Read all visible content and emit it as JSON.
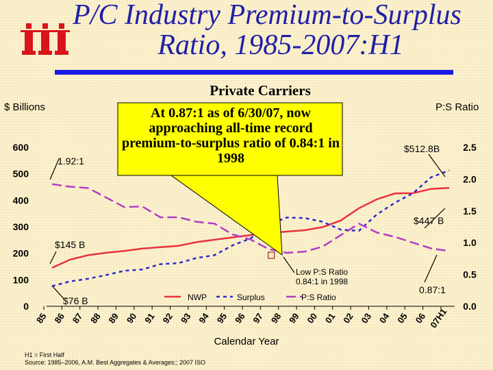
{
  "title_line1": "P/C Industry Premium-to-Surplus",
  "title_line2": "Ratio, 1985-2007:H1",
  "subtitle": "Private Carriers",
  "left_axis_label": "$ Billions",
  "right_axis_label": "P:S Ratio",
  "callout": "At 0.87:1 as of 6/30/07, now approaching all-time record premium-to-surplus ratio of 0.84:1 in 1998",
  "footnote_line1": "H1 = First Half",
  "footnote_line2": "Source: 1985–2006, A.M. Best Aggregates & Averages;; 2007 ISO",
  "colors": {
    "nwp": "#e8323c",
    "surplus": "#2a2acc",
    "ratio": "#b33cc4",
    "title": "#1f1fa8",
    "logo": "#d9141b",
    "callout": "#ffff00"
  },
  "chart_data": {
    "type": "line",
    "categories": [
      "85",
      "86",
      "87",
      "88",
      "89",
      "90",
      "91",
      "92",
      "93",
      "94",
      "95",
      "96",
      "97",
      "98",
      "99",
      "00",
      "01",
      "02",
      "03",
      "04",
      "05",
      "06",
      "07H1"
    ],
    "xlabel": "Calendar Year",
    "ylabel_left": "$ Billions",
    "ylabel_right": "P:S Ratio",
    "ylim_left": [
      0,
      600
    ],
    "ylim_right": [
      0.0,
      2.5
    ],
    "yticks_left": [
      "0",
      "100",
      "200",
      "300",
      "400",
      "500",
      "600"
    ],
    "yticks_right": [
      "0.0",
      "0.5",
      "1.0",
      "1.5",
      "2.0",
      "2.5"
    ],
    "legend_position": "bottom",
    "series": [
      {
        "name": "NWP",
        "axis": "left",
        "style": "solid",
        "values": [
          145,
          176,
          193,
          202,
          209,
          218,
          223,
          228,
          242,
          251,
          260,
          269,
          276,
          282,
          287,
          299,
          324,
          370,
          404,
          426,
          427,
          443,
          447
        ]
      },
      {
        "name": "Surplus",
        "axis": "left",
        "style": "dashed",
        "values": [
          76,
          94,
          104,
          118,
          134,
          139,
          159,
          163,
          182,
          193,
          230,
          256,
          308,
          335,
          333,
          319,
          289,
          285,
          347,
          391,
          427,
          487,
          512.8
        ]
      },
      {
        "name": "P:S Ratio",
        "axis": "right",
        "style": "long-dash",
        "values": [
          1.92,
          1.88,
          1.86,
          1.71,
          1.56,
          1.57,
          1.4,
          1.4,
          1.33,
          1.3,
          1.13,
          1.05,
          0.9,
          0.84,
          0.86,
          0.94,
          1.12,
          1.3,
          1.16,
          1.09,
          1.0,
          0.91,
          0.87
        ]
      }
    ],
    "annotations": [
      {
        "text": "1.92:1",
        "series": "P:S Ratio",
        "category": "85"
      },
      {
        "text": "$145 B",
        "series": "NWP",
        "category": "85"
      },
      {
        "text": "$76 B",
        "series": "Surplus",
        "category": "85"
      },
      {
        "text": "$512.8B",
        "series": "Surplus",
        "category": "07H1"
      },
      {
        "text": "$447 B",
        "series": "NWP",
        "category": "07H1"
      },
      {
        "text": "0.87:1",
        "series": "P:S Ratio",
        "category": "07H1"
      },
      {
        "text": "Low P:S Ratio 0.84:1 in 1998",
        "series": "P:S Ratio",
        "category": "98"
      }
    ]
  }
}
